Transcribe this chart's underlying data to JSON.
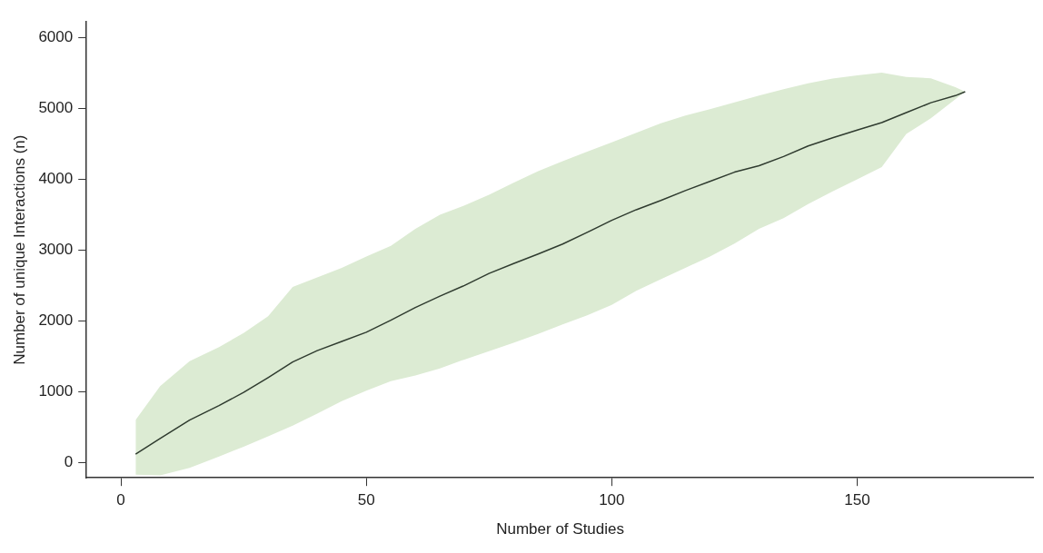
{
  "chart_data": {
    "type": "line",
    "xlabel": "Number of Studies",
    "ylabel": "Number of unique Interactions (n)",
    "xlim": [
      -7,
      186
    ],
    "ylim": [
      -215,
      6220
    ],
    "xticks": [
      0,
      50,
      100,
      150
    ],
    "yticks": [
      0,
      1000,
      2000,
      3000,
      4000,
      5000,
      6000
    ],
    "legend": false,
    "marker": "none",
    "line_style": "solid",
    "series": [
      {
        "color": "#2f3b2f",
        "x": [
          3,
          8,
          14,
          20,
          25,
          30,
          35,
          40,
          45,
          50,
          55,
          60,
          65,
          70,
          75,
          80,
          85,
          90,
          95,
          100,
          105,
          110,
          115,
          120,
          125,
          130,
          135,
          140,
          145,
          150,
          155,
          160,
          165,
          170,
          172
        ],
        "values": [
          120,
          340,
          600,
          805,
          990,
          1200,
          1420,
          1580,
          1710,
          1840,
          2010,
          2190,
          2350,
          2500,
          2670,
          2810,
          2945,
          3085,
          3250,
          3420,
          3570,
          3700,
          3840,
          3970,
          4100,
          4190,
          4320,
          4470,
          4585,
          4695,
          4800,
          4940,
          5080,
          5180,
          5235
        ],
        "upper": [
          600,
          1080,
          1430,
          1630,
          1830,
          2065,
          2480,
          2615,
          2750,
          2910,
          3060,
          3300,
          3500,
          3630,
          3780,
          3950,
          4115,
          4255,
          4390,
          4520,
          4655,
          4790,
          4900,
          4990,
          5085,
          5180,
          5270,
          5355,
          5420,
          5465,
          5505,
          5445,
          5425,
          5300,
          5235
        ],
        "lower": [
          -170,
          -180,
          -75,
          85,
          225,
          372,
          521,
          690,
          866,
          1015,
          1148,
          1230,
          1330,
          1455,
          1574,
          1690,
          1816,
          1950,
          2080,
          2225,
          2425,
          2590,
          2750,
          2910,
          3090,
          3300,
          3450,
          3650,
          3830,
          4000,
          4170,
          4640,
          4860,
          5130,
          5235
        ]
      }
    ]
  }
}
